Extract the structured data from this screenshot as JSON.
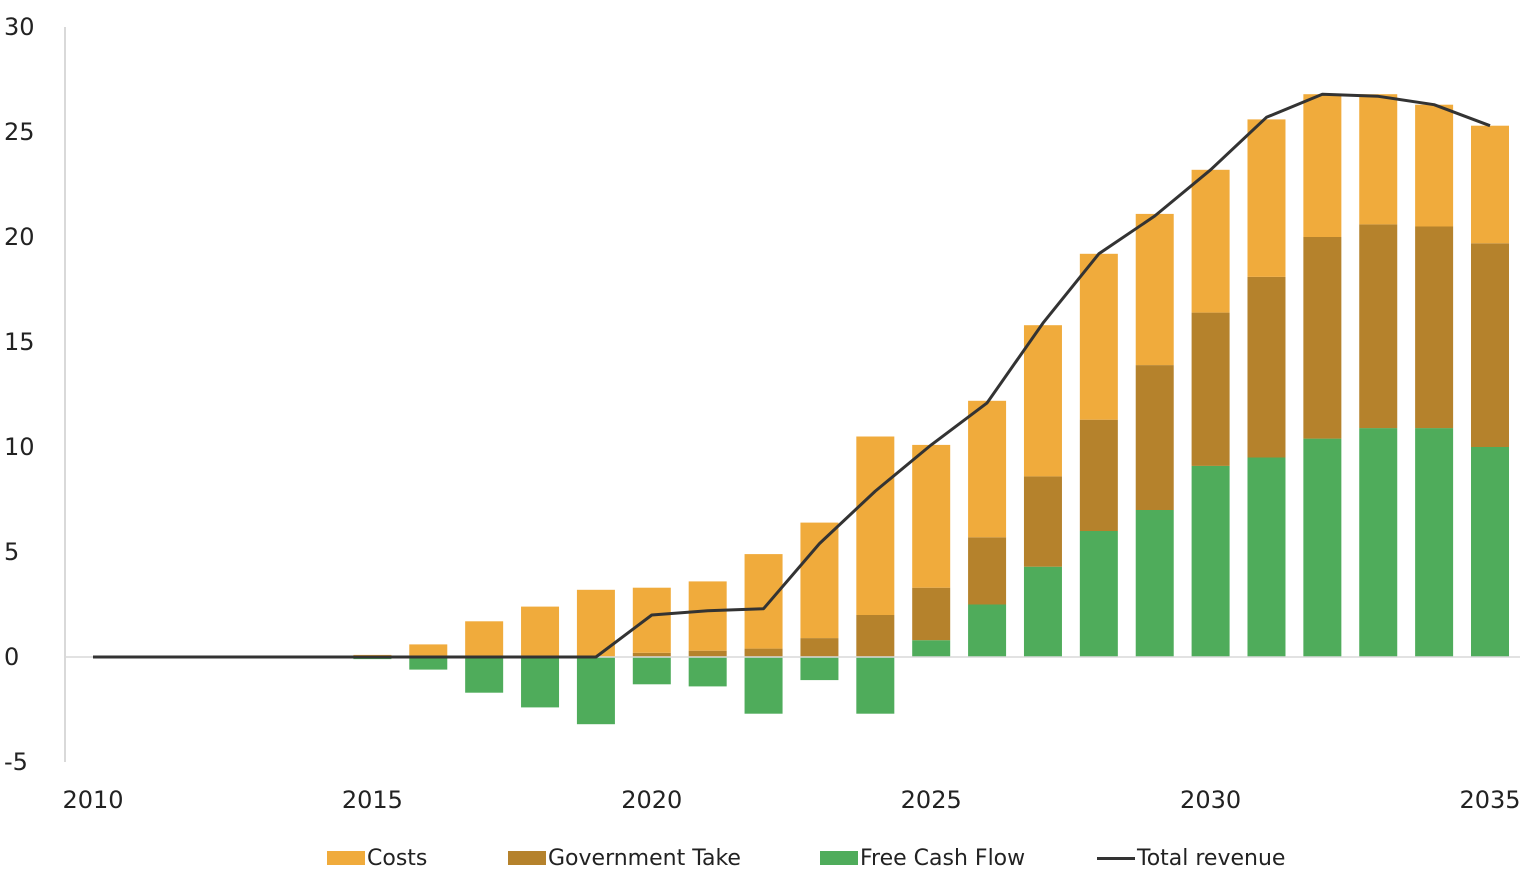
{
  "chart_data": {
    "type": "bar",
    "stacked": true,
    "x": [
      2010,
      2011,
      2012,
      2013,
      2014,
      2015,
      2016,
      2017,
      2018,
      2019,
      2020,
      2021,
      2022,
      2023,
      2024,
      2025,
      2026,
      2027,
      2028,
      2029,
      2030,
      2031,
      2032,
      2033,
      2034,
      2035
    ],
    "series": [
      {
        "name": "Free Cash Flow",
        "kind": "bar",
        "color": "#4fac5b",
        "values": [
          0,
          0,
          0,
          0,
          0,
          -0.1,
          -0.6,
          -1.7,
          -2.4,
          -3.2,
          -1.3,
          -1.4,
          -2.7,
          -1.1,
          -2.7,
          0.8,
          2.5,
          4.3,
          6.0,
          7.0,
          9.1,
          9.5,
          10.4,
          10.9,
          10.9,
          10.0
        ]
      },
      {
        "name": "Government Take",
        "kind": "bar",
        "color": "#b5822c",
        "values": [
          0,
          0,
          0,
          0,
          0,
          0,
          0,
          0,
          0,
          0,
          0.2,
          0.3,
          0.4,
          0.9,
          2.0,
          2.5,
          3.2,
          4.3,
          5.3,
          6.9,
          7.3,
          8.6,
          9.6,
          9.7,
          9.6,
          9.7
        ]
      },
      {
        "name": "Costs",
        "kind": "bar",
        "color": "#f0ab3c",
        "values": [
          0,
          0,
          0,
          0,
          0,
          0.1,
          0.6,
          1.7,
          2.4,
          3.2,
          3.1,
          3.3,
          4.5,
          5.5,
          8.5,
          6.8,
          6.5,
          7.2,
          7.9,
          7.2,
          6.8,
          7.5,
          6.8,
          6.2,
          5.8,
          5.6
        ]
      },
      {
        "name": "Total revenue",
        "kind": "line",
        "color": "#333333",
        "values": [
          0,
          0,
          0,
          0,
          0,
          0,
          0,
          0,
          0,
          0,
          2.0,
          2.2,
          2.3,
          5.4,
          7.9,
          10.1,
          12.1,
          15.9,
          19.2,
          21.0,
          23.2,
          25.7,
          26.8,
          26.7,
          26.3,
          25.3
        ]
      }
    ],
    "x_ticks": [
      "2010",
      "2015",
      "2020",
      "2025",
      "2030",
      "2035"
    ],
    "y_ticks": [
      "30",
      "25",
      "20",
      "15",
      "10",
      "5",
      "0",
      "-5"
    ],
    "ylim": [
      -5,
      30
    ],
    "xlim": [
      2010,
      2035
    ],
    "grid": false,
    "legend_position": "bottom",
    "title": "",
    "xlabel": "",
    "ylabel": ""
  },
  "legend": {
    "costs": "Costs",
    "government_take": "Government Take",
    "free_cash_flow": "Free Cash Flow",
    "total_revenue": "Total revenue"
  }
}
